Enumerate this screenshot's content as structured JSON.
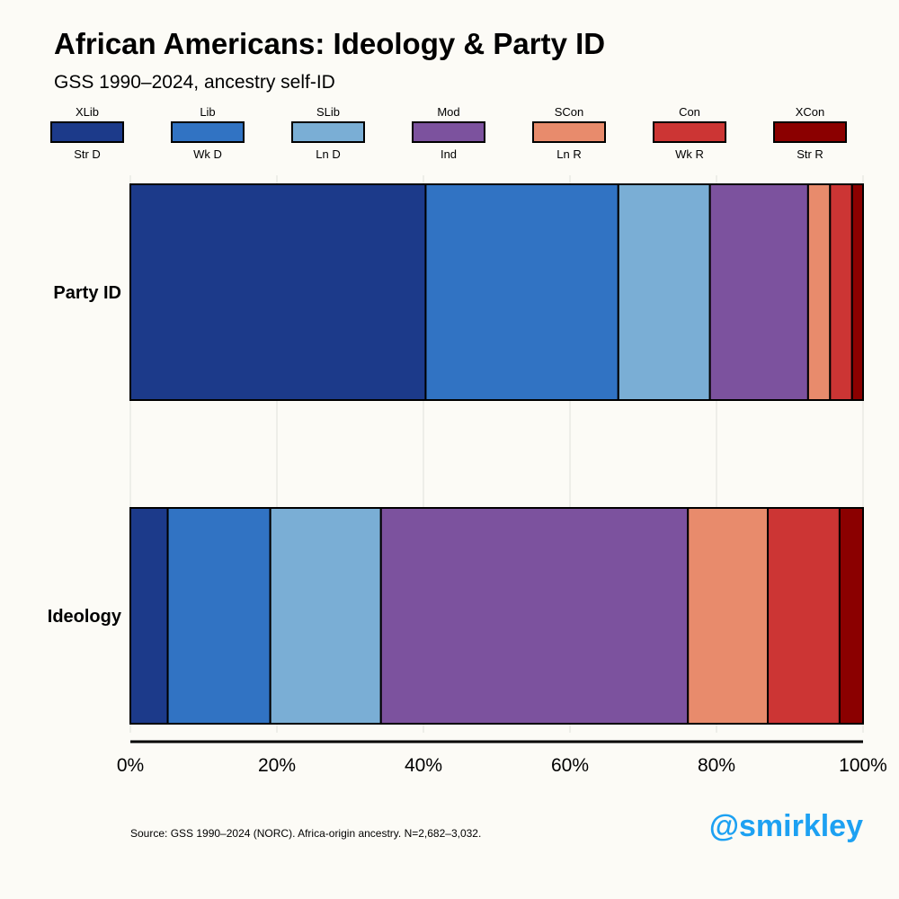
{
  "title": "African Americans: Ideology & Party ID",
  "subtitle": "GSS 1990–2024, ancestry self-ID",
  "source": "Source: GSS 1990–2024 (NORC). Africa-origin ancestry. N=2,682–3,032.",
  "handle": "@smirkley",
  "legend": [
    {
      "top": "XLib",
      "bottom": "Str D",
      "color": "#1c3a8a"
    },
    {
      "top": "Lib",
      "bottom": "Wk D",
      "color": "#3173c3"
    },
    {
      "top": "SLib",
      "bottom": "Ln D",
      "color": "#7aaed5"
    },
    {
      "top": "Mod",
      "bottom": "Ind",
      "color": "#7c529e"
    },
    {
      "top": "SCon",
      "bottom": "Ln R",
      "color": "#e88b6c"
    },
    {
      "top": "Con",
      "bottom": "Wk R",
      "color": "#cc3534"
    },
    {
      "top": "XCon",
      "bottom": "Str R",
      "color": "#8b0000"
    }
  ],
  "chart_data": {
    "type": "bar",
    "orientation": "horizontal",
    "stacked": true,
    "categories": [
      "Party ID",
      "Ideology"
    ],
    "xlim": [
      0,
      100
    ],
    "x_ticks": [
      "0%",
      "20%",
      "40%",
      "60%",
      "80%",
      "100%"
    ],
    "x_tick_values": [
      0,
      20,
      40,
      60,
      80,
      100
    ],
    "grid": true,
    "legend_position": "top",
    "series": [
      {
        "name": "XLib / Str D",
        "values": [
          40.3,
          5.1
        ]
      },
      {
        "name": "Lib / Wk D",
        "values": [
          26.3,
          14.0
        ]
      },
      {
        "name": "SLib / Ln D",
        "values": [
          12.5,
          15.1
        ]
      },
      {
        "name": "Mod / Ind",
        "values": [
          13.4,
          41.9
        ]
      },
      {
        "name": "SCon / Ln R",
        "values": [
          3.0,
          10.9
        ]
      },
      {
        "name": "Con / Wk R",
        "values": [
          3.0,
          9.8
        ]
      },
      {
        "name": "XCon / Str R",
        "values": [
          1.5,
          3.2
        ]
      }
    ]
  }
}
